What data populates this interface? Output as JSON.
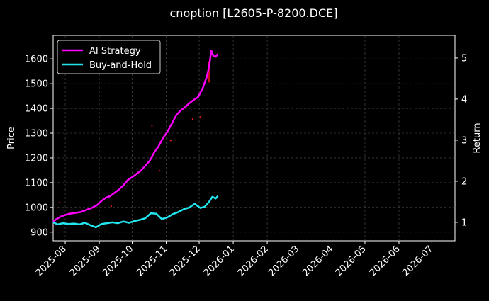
{
  "chart_data": {
    "type": "line",
    "title": "cnoption [L2605-P-8200.DCE]",
    "ylabel": "Price",
    "y2label": "Return",
    "grid": true,
    "legend_position": "top-left",
    "ylim": [
      865,
      1695
    ],
    "y2lim": [
      0.55,
      5.55
    ],
    "xlim": [
      "2025-07-21",
      "2026-07-22"
    ],
    "yticks": [
      900,
      1000,
      1100,
      1200,
      1300,
      1400,
      1500,
      1600
    ],
    "y2ticks": [
      1,
      2,
      3,
      4,
      5
    ],
    "xticks": [
      "2025-08",
      "2025-09",
      "2025-10",
      "2025-11",
      "2025-12",
      "2026-01",
      "2026-02",
      "2026-03",
      "2026-04",
      "2026-05",
      "2026-06",
      "2026-07"
    ],
    "series": [
      {
        "name": "AI Strategy",
        "color": "#ff00ff",
        "axis": "right",
        "x": [
          "2025-07-21",
          "2025-07-24",
          "2025-07-28",
          "2025-08-01",
          "2025-08-05",
          "2025-08-10",
          "2025-08-15",
          "2025-08-20",
          "2025-08-25",
          "2025-08-30",
          "2025-09-03",
          "2025-09-07",
          "2025-09-11",
          "2025-09-15",
          "2025-09-19",
          "2025-09-23",
          "2025-09-27",
          "2025-10-01",
          "2025-10-05",
          "2025-10-09",
          "2025-10-13",
          "2025-10-17",
          "2025-10-21",
          "2025-10-25",
          "2025-10-29",
          "2025-11-02",
          "2025-11-06",
          "2025-11-10",
          "2025-11-14",
          "2025-11-18",
          "2025-11-22",
          "2025-11-26",
          "2025-11-30",
          "2025-12-04",
          "2025-12-08",
          "2025-12-10",
          "2025-12-12",
          "2025-12-14",
          "2025-12-16",
          "2025-12-18"
        ],
        "y": [
          1.02,
          1.08,
          1.14,
          1.18,
          1.21,
          1.23,
          1.25,
          1.3,
          1.35,
          1.42,
          1.52,
          1.6,
          1.64,
          1.72,
          1.8,
          1.9,
          2.03,
          2.1,
          2.18,
          2.26,
          2.38,
          2.5,
          2.7,
          2.85,
          3.05,
          3.2,
          3.4,
          3.6,
          3.72,
          3.8,
          3.9,
          3.98,
          4.05,
          4.25,
          4.55,
          4.78,
          5.18,
          5.05,
          5.03,
          5.1
        ]
      },
      {
        "name": "Buy-and-Hold",
        "color": "#22e5ee",
        "axis": "right",
        "x": [
          "2025-07-21",
          "2025-07-25",
          "2025-07-30",
          "2025-08-04",
          "2025-08-09",
          "2025-08-14",
          "2025-08-19",
          "2025-08-24",
          "2025-08-29",
          "2025-09-03",
          "2025-09-08",
          "2025-09-13",
          "2025-09-18",
          "2025-09-23",
          "2025-09-28",
          "2025-10-03",
          "2025-10-08",
          "2025-10-13",
          "2025-10-18",
          "2025-10-23",
          "2025-10-28",
          "2025-11-02",
          "2025-11-07",
          "2025-11-12",
          "2025-11-17",
          "2025-11-22",
          "2025-11-27",
          "2025-12-02",
          "2025-12-06",
          "2025-12-10",
          "2025-12-13",
          "2025-12-16",
          "2025-12-18"
        ],
        "y": [
          1.0,
          0.95,
          0.98,
          0.96,
          0.97,
          0.95,
          0.99,
          0.93,
          0.88,
          0.96,
          0.98,
          1.0,
          0.98,
          1.02,
          0.99,
          1.03,
          1.06,
          1.1,
          1.22,
          1.21,
          1.08,
          1.12,
          1.2,
          1.25,
          1.32,
          1.36,
          1.45,
          1.35,
          1.38,
          1.5,
          1.62,
          1.58,
          1.64
        ]
      }
    ],
    "annotations": {
      "price_scatter": {
        "color": "#ff1a1a",
        "axis": "left",
        "x": [
          "2025-07-27",
          "2025-09-12",
          "2025-10-19",
          "2025-10-26",
          "2025-11-05",
          "2025-11-25",
          "2025-12-02",
          "2025-12-08"
        ],
        "y": [
          1020,
          1005,
          1330,
          1148,
          1270,
          1357,
          1365,
          1520
        ]
      },
      "price_bar": {
        "color": "#cc1111",
        "axis": "left",
        "x": "2025-12-10",
        "y_low": 1505,
        "y_high": 1590
      }
    }
  }
}
